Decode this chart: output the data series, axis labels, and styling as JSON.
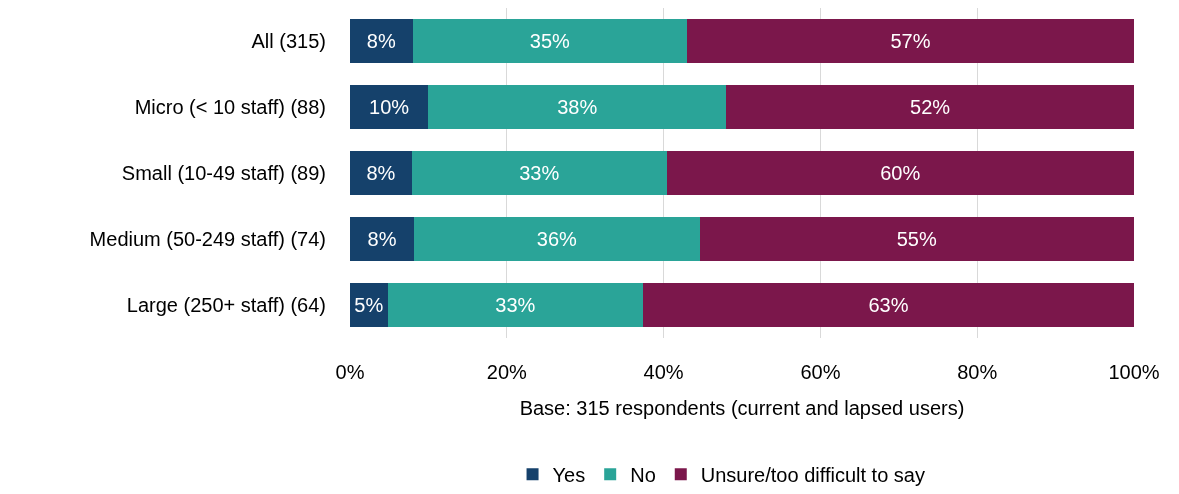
{
  "chart_data": {
    "type": "bar",
    "orientation": "horizontal",
    "stacked": true,
    "categories": [
      "All (315)",
      "Micro (< 10 staff) (88)",
      "Small (10-49 staff) (89)",
      "Medium (50-249 staff) (74)",
      "Large (250+ staff) (64)"
    ],
    "series": [
      {
        "name": "Yes",
        "color": "#15416b",
        "values": [
          8,
          10,
          7.9,
          8.2,
          4.8
        ],
        "value_labels": [
          "8%",
          "10%",
          "8%",
          "8%",
          "5%"
        ]
      },
      {
        "name": "No",
        "color": "#2aa498",
        "values": [
          35,
          38,
          32.5,
          36.4,
          32.6
        ],
        "value_labels": [
          "35%",
          "38%",
          "33%",
          "36%",
          "33%"
        ]
      },
      {
        "name": "Unsure/too difficult to say",
        "color": "#7b174b",
        "values": [
          57,
          52,
          59.6,
          55.4,
          62.6
        ],
        "value_labels": [
          "57%",
          "52%",
          "60%",
          "55%",
          "63%"
        ]
      }
    ],
    "xlabel": "Base: 315 respondents (current and lapsed users)",
    "xlim": [
      0,
      100
    ],
    "xticks": [
      {
        "value": 0,
        "label": "0%"
      },
      {
        "value": 20,
        "label": "20%"
      },
      {
        "value": 40,
        "label": "40%"
      },
      {
        "value": 60,
        "label": "60%"
      },
      {
        "value": 80,
        "label": "80%"
      },
      {
        "value": 100,
        "label": "100%"
      }
    ],
    "grid": "x",
    "legend": "bottom"
  }
}
